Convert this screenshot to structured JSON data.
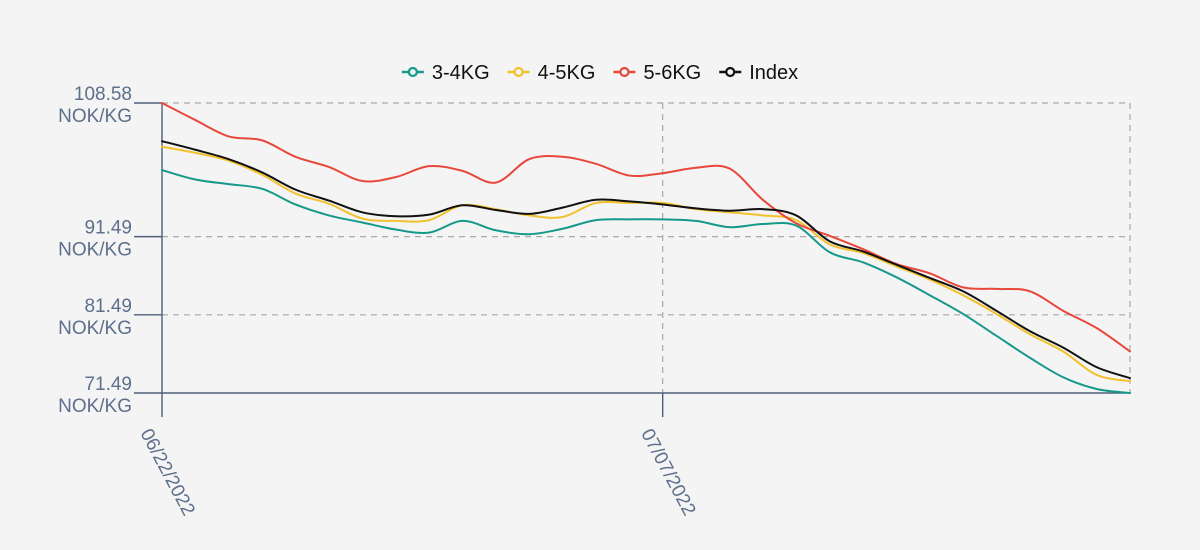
{
  "chart_data": {
    "type": "line",
    "colors": {
      "3-4KG": "#16998a",
      "4-5KG": "#f2c12e",
      "5-6KG": "#e8483c",
      "Index": "#111111"
    },
    "legend": {
      "placement": "top-center",
      "entries": [
        "3-4KG",
        "4-5KG",
        "5-6KG",
        "Index"
      ]
    },
    "grid": true,
    "x_ticks": [
      "06/22/2022",
      "07/07/2022"
    ],
    "y_ticks": [
      {
        "value": 108.58,
        "label_value": "108.58",
        "label_unit": "NOK/KG"
      },
      {
        "value": 91.49,
        "label_value": "91.49",
        "label_unit": "NOK/KG"
      },
      {
        "value": 81.49,
        "label_value": "81.49",
        "label_unit": "NOK/KG"
      },
      {
        "value": 71.49,
        "label_value": "71.49",
        "label_unit": "NOK/KG"
      }
    ],
    "x_range": [
      0,
      29
    ],
    "series": [
      {
        "name": "3-4KG",
        "x": [
          0,
          1,
          2,
          3,
          4,
          5,
          6,
          7,
          8,
          9,
          10,
          11,
          12,
          13,
          14,
          15,
          16,
          17,
          18,
          19,
          20,
          21,
          22,
          23,
          24,
          25,
          26,
          27,
          28,
          29
        ],
        "values": [
          100.0,
          98.8,
          98.2,
          97.6,
          95.6,
          94.2,
          93.3,
          92.4,
          92.0,
          93.5,
          92.3,
          91.8,
          92.5,
          93.6,
          93.7,
          93.7,
          93.5,
          92.7,
          93.1,
          92.9,
          89.5,
          88.2,
          86.3,
          84.0,
          81.6,
          78.8,
          76.0,
          73.5,
          72.0,
          71.49
        ]
      },
      {
        "name": "4-5KG",
        "x": [
          0,
          1,
          2,
          3,
          4,
          5,
          6,
          7,
          8,
          9,
          10,
          11,
          12,
          13,
          14,
          15,
          16,
          17,
          18,
          19,
          20,
          21,
          22,
          23,
          24,
          25,
          26,
          27,
          28,
          29
        ],
        "values": [
          103.0,
          102.2,
          101.2,
          99.4,
          97.0,
          95.7,
          93.8,
          93.5,
          93.6,
          95.5,
          95.0,
          94.2,
          94.0,
          95.8,
          95.8,
          95.8,
          95.0,
          94.6,
          94.2,
          93.6,
          90.5,
          89.4,
          87.7,
          86.0,
          84.0,
          81.6,
          79.0,
          76.8,
          73.8,
          73.0
        ]
      },
      {
        "name": "5-6KG",
        "x": [
          0,
          1,
          2,
          3,
          4,
          5,
          6,
          7,
          8,
          9,
          10,
          11,
          12,
          13,
          14,
          15,
          16,
          17,
          18,
          19,
          20,
          21,
          22,
          23,
          24,
          25,
          26,
          27,
          28,
          29
        ],
        "values": [
          108.58,
          106.4,
          104.3,
          103.8,
          101.7,
          100.4,
          98.6,
          99.1,
          100.5,
          99.9,
          98.4,
          101.4,
          101.7,
          100.8,
          99.3,
          99.6,
          100.3,
          100.2,
          96.2,
          93.2,
          91.6,
          89.9,
          88.0,
          86.8,
          85.0,
          84.8,
          84.5,
          82.0,
          79.8,
          76.8
        ]
      },
      {
        "name": "Index",
        "x": [
          0,
          1,
          2,
          3,
          4,
          5,
          6,
          7,
          8,
          9,
          10,
          11,
          12,
          13,
          14,
          15,
          16,
          17,
          18,
          19,
          20,
          21,
          22,
          23,
          24,
          25,
          26,
          27,
          28,
          29
        ],
        "values": [
          103.7,
          102.6,
          101.4,
          99.7,
          97.5,
          96.1,
          94.6,
          94.1,
          94.3,
          95.5,
          94.9,
          94.4,
          95.2,
          96.2,
          96.0,
          95.6,
          95.1,
          94.8,
          95.0,
          94.2,
          90.9,
          89.6,
          87.9,
          86.2,
          84.5,
          82.0,
          79.4,
          77.3,
          74.8,
          73.4
        ]
      }
    ]
  }
}
